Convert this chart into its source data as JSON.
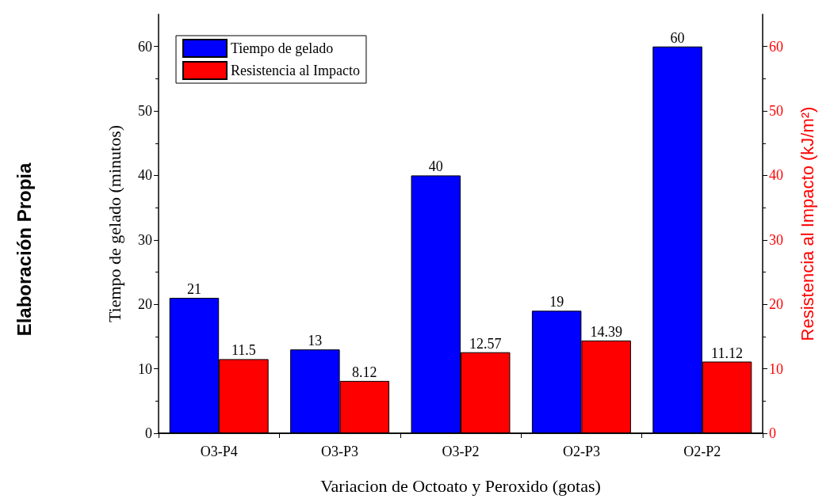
{
  "chart_data": {
    "type": "bar",
    "xlabel": "Variacion de Octoato y Peroxido (gotas)",
    "ylabel": "Tiempo de gelado (minutos)",
    "y2label": "Resistencia al Impacto (kJ/m²)",
    "categories": [
      "O3-P4",
      "O3-P3",
      "O3-P2",
      "O2-P3",
      "O2-P2"
    ],
    "series": [
      {
        "name": "Tiempo de gelado",
        "color": "#0000ff",
        "values": [
          21,
          13,
          40,
          19,
          60
        ]
      },
      {
        "name": "Resistencia al Impacto",
        "color": "#ff0000",
        "axis": "y2",
        "values": [
          11.5,
          8.12,
          12.57,
          14.39,
          11.12
        ]
      }
    ],
    "ylim": [
      0,
      65
    ],
    "yticks": [
      0,
      10,
      20,
      30,
      40,
      50,
      60
    ],
    "y2lim": [
      0,
      65
    ],
    "y2ticks": [
      0,
      10,
      20,
      30,
      40,
      50,
      60
    ],
    "data_labels": true,
    "grid": false,
    "legend": "top left",
    "annotations": [
      "Elaboración Propia"
    ]
  }
}
